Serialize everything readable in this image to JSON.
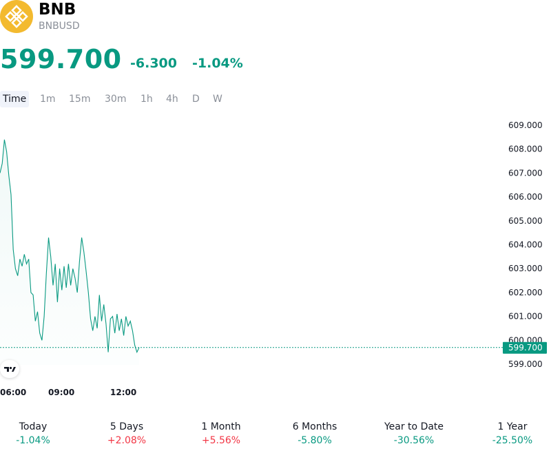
{
  "asset": {
    "symbol": "BNB",
    "ticker": "BNBUSD",
    "logo_icon": "bnb-logo-icon",
    "brand_color": "#F3BA2F"
  },
  "quote": {
    "price": "599.700",
    "change": "-6.300",
    "change_pct": "-1.04%",
    "color": "#089981"
  },
  "tabs": [
    {
      "label": "Time",
      "active": true
    },
    {
      "label": "1m"
    },
    {
      "label": "15m"
    },
    {
      "label": "30m"
    },
    {
      "label": "1h"
    },
    {
      "label": "4h"
    },
    {
      "label": "D"
    },
    {
      "label": "W"
    }
  ],
  "chart_data": {
    "type": "area",
    "x_ticks": [
      "06:00",
      "09:00",
      "12:00"
    ],
    "y_ticks": [
      "609.000",
      "608.000",
      "607.000",
      "606.000",
      "605.000",
      "604.000",
      "603.000",
      "602.000",
      "601.000",
      "600.000",
      "599.000"
    ],
    "ylim": [
      598.5,
      609.3
    ],
    "last_price_label": "599.700",
    "line_color": "#089981",
    "series": [
      {
        "values": [
          607.0,
          607.4,
          608.4,
          607.9,
          606.9,
          606.1,
          603.8,
          603.0,
          602.7,
          603.4,
          603.1,
          603.6,
          603.2,
          603.4,
          602.0,
          601.9,
          600.8,
          601.2,
          600.3,
          600.0,
          601.0,
          602.8,
          604.3,
          603.5,
          602.3,
          603.2,
          601.6,
          603.0,
          602.1,
          603.1,
          602.2,
          603.2,
          602.3,
          603.0,
          602.6,
          602.0,
          603.3,
          604.3,
          603.7,
          602.9,
          602.0,
          600.9,
          600.4,
          601.0,
          600.5,
          601.9,
          600.8,
          601.5,
          600.7,
          599.5,
          600.9,
          601.0,
          600.3,
          601.1,
          600.4,
          600.9,
          600.2,
          601.0,
          600.6,
          600.8,
          600.4,
          599.8,
          599.5,
          599.7
        ]
      }
    ]
  },
  "periods": [
    {
      "label": "Today",
      "value": "-1.04%",
      "color": "#089981"
    },
    {
      "label": "5 Days",
      "value": "+2.08%",
      "color": "#f23645"
    },
    {
      "label": "1 Month",
      "value": "+5.56%",
      "color": "#f23645"
    },
    {
      "label": "6 Months",
      "value": "-5.80%",
      "color": "#089981"
    },
    {
      "label": "Year to Date",
      "value": "-30.56%",
      "color": "#089981"
    },
    {
      "label": "1 Year",
      "value": "-25.50%",
      "color": "#089981"
    }
  ],
  "attribution": {
    "icon": "tradingview-logo-icon",
    "text": "TV"
  }
}
